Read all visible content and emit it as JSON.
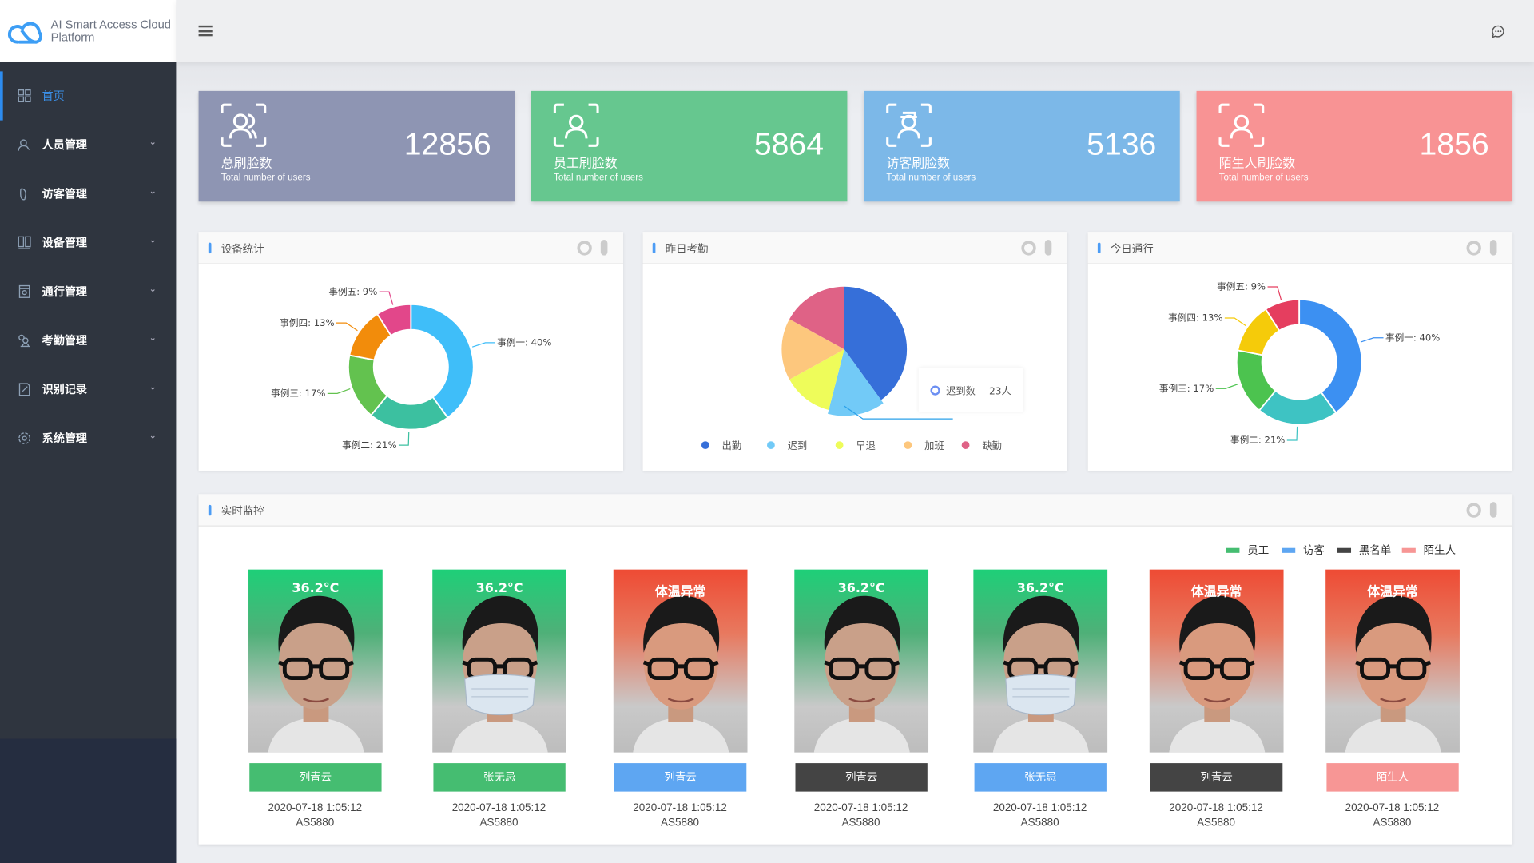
{
  "app": {
    "title_line1": "AI Smart Access Cloud",
    "title_line2": "Platform"
  },
  "header": {
    "menu_icon": "hamburger-icon",
    "message_icon": "chat-icon"
  },
  "sidebar": {
    "items": [
      {
        "label": "首页",
        "icon": "grid-icon",
        "active": true
      },
      {
        "label": "人员管理",
        "icon": "user-icon"
      },
      {
        "label": "访客管理",
        "icon": "footprint-icon"
      },
      {
        "label": "设备管理",
        "icon": "device-icon"
      },
      {
        "label": "通行管理",
        "icon": "gate-icon"
      },
      {
        "label": "考勤管理",
        "icon": "attendance-icon"
      },
      {
        "label": "识别记录",
        "icon": "record-icon"
      },
      {
        "label": "系统管理",
        "icon": "settings-icon"
      }
    ]
  },
  "stats": [
    {
      "label": "总刷脸数",
      "sub": "Total number of users",
      "value": "12856",
      "color": "#8e95b3",
      "icon": "group-face-icon"
    },
    {
      "label": "员工刷脸数",
      "sub": "Total number of users",
      "value": "5864",
      "color": "#66c78f",
      "icon": "employee-face-icon"
    },
    {
      "label": "访客刷脸数",
      "sub": "Total number of users",
      "value": "5136",
      "color": "#7cb8e8",
      "icon": "visitor-face-icon"
    },
    {
      "label": "陌生人刷脸数",
      "sub": "Total number of users",
      "value": "1856",
      "color": "#f89394",
      "icon": "stranger-face-icon"
    }
  ],
  "panels": {
    "device": "设备统计",
    "attendance": "昨日考勤",
    "traffic": "今日通行",
    "monitor": "实时监控"
  },
  "chart_data": [
    {
      "type": "pie",
      "variant": "donut",
      "categories": [
        "事例一",
        "事例二",
        "事例三",
        "事例四",
        "事例五"
      ],
      "values": [
        40,
        21,
        17,
        13,
        9
      ],
      "labels": [
        "事例一: 40%",
        "事例二: 21%",
        "事例三: 17%",
        "事例四: 13%",
        "事例五: 9%"
      ],
      "colors": [
        "#3fbef9",
        "#3cc0a0",
        "#63c24f",
        "#f28c0b",
        "#e2478a"
      ]
    },
    {
      "type": "pie",
      "categories": [
        "出勤",
        "迟到",
        "早退",
        "加班",
        "缺勤"
      ],
      "values": [
        40,
        14,
        13,
        16,
        17
      ],
      "colors": [
        "#366fd9",
        "#72caf7",
        "#eefc5a",
        "#fdc77d",
        "#df6286"
      ],
      "legend": "bottom",
      "tooltip": {
        "label": "迟到数",
        "value": "23人"
      }
    },
    {
      "type": "pie",
      "variant": "donut",
      "categories": [
        "事例一",
        "事例二",
        "事例三",
        "事例四",
        "事例五"
      ],
      "values": [
        40,
        21,
        17,
        13,
        9
      ],
      "labels": [
        "事例一: 40%",
        "事例二: 21%",
        "事例三: 17%",
        "事例四: 13%",
        "事例五: 9%"
      ],
      "colors": [
        "#3c90f2",
        "#3ec3c3",
        "#4cc34f",
        "#f5cb0a",
        "#e53e5f"
      ]
    }
  ],
  "monitor": {
    "legend": [
      {
        "label": "员工",
        "color": "#45bd71"
      },
      {
        "label": "访客",
        "color": "#5ea6f2"
      },
      {
        "label": "黑名单",
        "color": "#444444"
      },
      {
        "label": "陌生人",
        "color": "#f79695"
      }
    ],
    "records": [
      {
        "temp": "36.2°C",
        "alert": false,
        "mask": false,
        "name": "列青云",
        "type": "员工",
        "time": "2020-07-18 1:05:12",
        "device": "AS5880"
      },
      {
        "temp": "36.2°C",
        "alert": false,
        "mask": true,
        "name": "张无忌",
        "type": "员工",
        "time": "2020-07-18 1:05:12",
        "device": "AS5880"
      },
      {
        "temp": "体温异常",
        "alert": true,
        "mask": false,
        "name": "列青云",
        "type": "访客",
        "time": "2020-07-18 1:05:12",
        "device": "AS5880"
      },
      {
        "temp": "36.2°C",
        "alert": false,
        "mask": false,
        "name": "列青云",
        "type": "黑名单",
        "time": "2020-07-18 1:05:12",
        "device": "AS5880"
      },
      {
        "temp": "36.2°C",
        "alert": false,
        "mask": true,
        "name": "张无忌",
        "type": "访客",
        "time": "2020-07-18 1:05:12",
        "device": "AS5880"
      },
      {
        "temp": "体温异常",
        "alert": true,
        "mask": false,
        "name": "列青云",
        "type": "黑名单",
        "time": "2020-07-18 1:05:12",
        "device": "AS5880"
      },
      {
        "temp": "体温异常",
        "alert": true,
        "mask": false,
        "name": "陌生人",
        "type": "陌生人",
        "time": "2020-07-18 1:05:12",
        "device": "AS5880"
      }
    ]
  }
}
